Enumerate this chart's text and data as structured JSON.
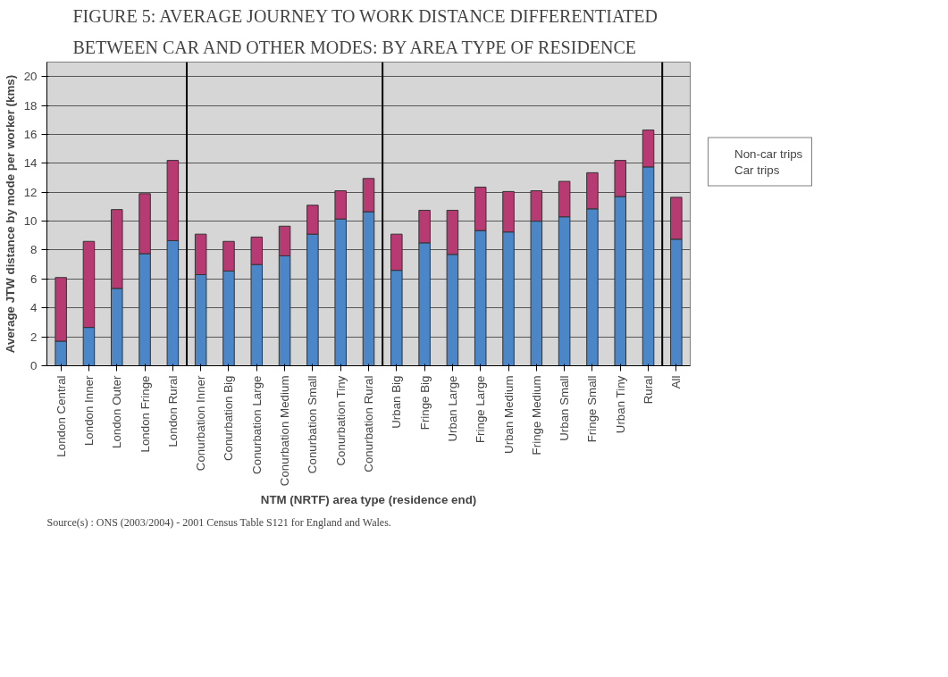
{
  "chart_data": {
    "type": "bar",
    "stacked": true,
    "title": "FIGURE 5:  AVERAGE JOURNEY TO WORK DISTANCE DIFFERENTIATED BETWEEN CAR AND OTHER MODES: BY AREA TYPE OF RESIDENCE",
    "xlabel": "NTM (NRTF) area type (residence end)",
    "ylabel": "Average JTW distance by mode per worker (kms)",
    "annotations": [
      "Source(s)   :   ONS (2003/2004) - 2001 Census Table S121 for England and Wales."
    ],
    "categories": [
      "London Central",
      "London Inner",
      "London Outer",
      "London Fringe",
      "London Rural",
      "Conurbation Inner",
      "Conurbation Big",
      "Conurbation Large",
      "Conurbation Medium",
      "Conurbation Small",
      "Conurbation Tiny",
      "Conurbation Rural",
      "Urban Big",
      "Fringe Big",
      "Urban Large",
      "Fringe Large",
      "Urban Medium",
      "Fringe Medium",
      "Urban Small",
      "Fringe Small",
      "Urban Tiny",
      "Rural",
      "All"
    ],
    "series": [
      {
        "name": "Car trips",
        "color": "#4a86c8",
        "values": [
          1.7,
          2.65,
          5.35,
          7.75,
          8.65,
          6.3,
          6.55,
          7.0,
          7.6,
          9.1,
          10.15,
          10.65,
          6.6,
          8.5,
          7.7,
          9.35,
          9.25,
          10.0,
          10.3,
          10.85,
          11.7,
          13.75,
          8.75
        ]
      },
      {
        "name": "Non-car trips",
        "color": "#b83a72",
        "values": [
          4.4,
          5.95,
          5.45,
          4.15,
          5.55,
          2.8,
          2.05,
          1.9,
          2.05,
          2.0,
          1.95,
          2.3,
          2.5,
          2.25,
          3.05,
          3.0,
          2.8,
          2.1,
          2.45,
          2.5,
          2.5,
          2.55,
          2.9
        ]
      }
    ],
    "ylim": [
      0,
      21
    ],
    "yticks": [
      0,
      2,
      4,
      6,
      8,
      10,
      12,
      14,
      16,
      18,
      20
    ],
    "grid": "y",
    "legend": "right"
  }
}
